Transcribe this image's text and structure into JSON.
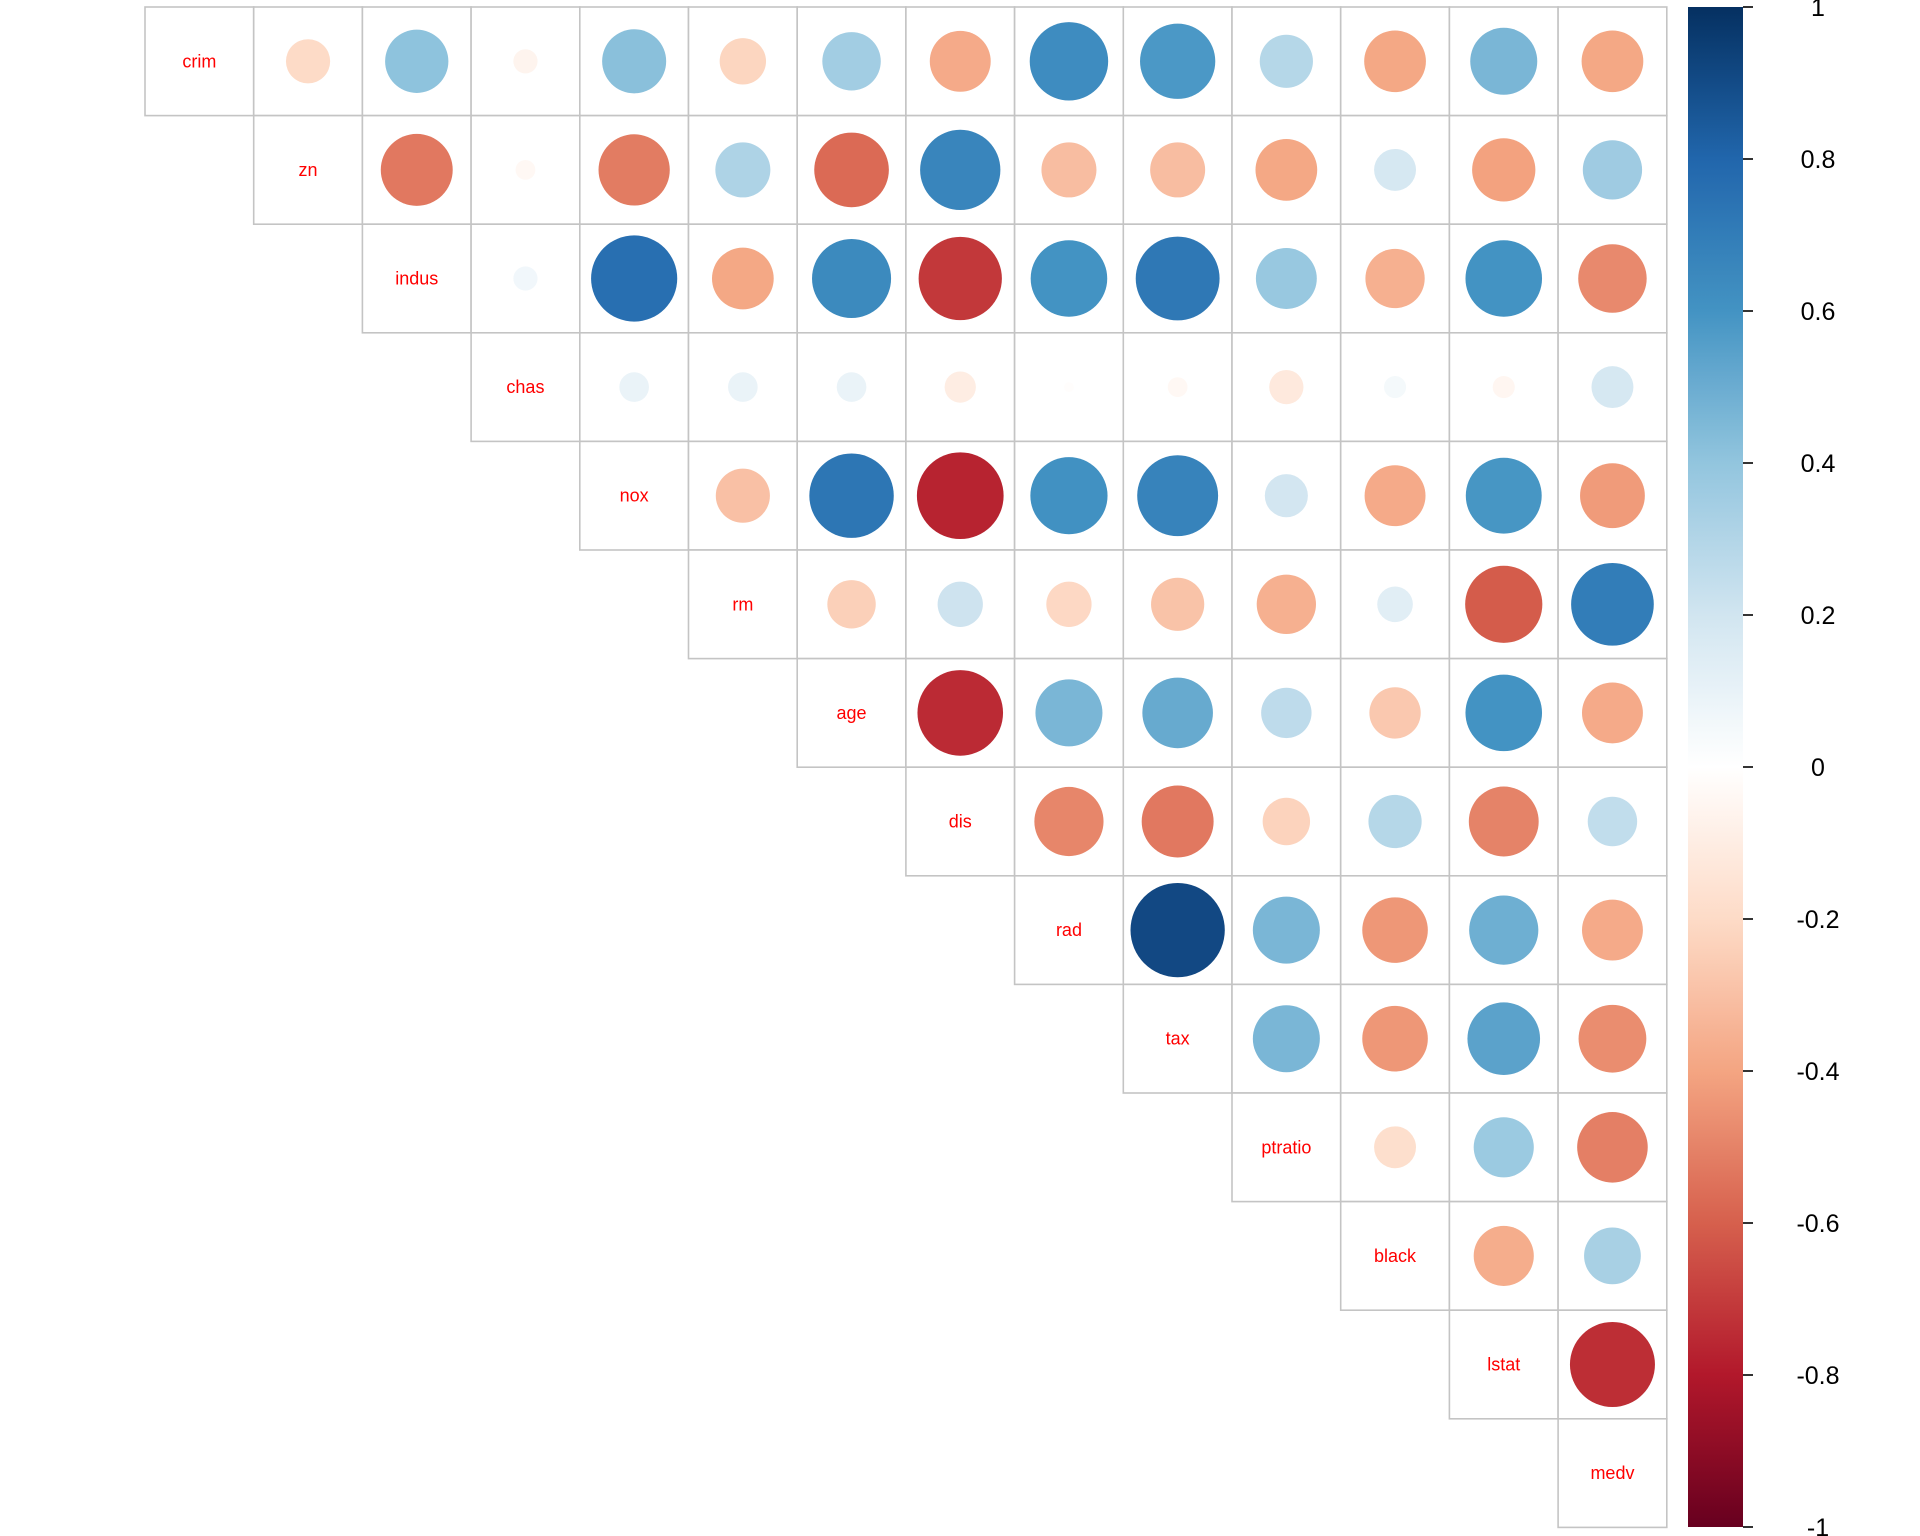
{
  "chart_data": {
    "type": "heatmap",
    "style": "correlation-matrix-upper-circles",
    "title": "",
    "variables": [
      "crim",
      "zn",
      "indus",
      "chas",
      "nox",
      "rm",
      "age",
      "dis",
      "rad",
      "tax",
      "ptratio",
      "black",
      "lstat",
      "medv"
    ],
    "matrix": [
      [
        1.0,
        -0.2,
        0.41,
        -0.06,
        0.42,
        -0.22,
        0.35,
        -0.38,
        0.63,
        0.58,
        0.29,
        -0.39,
        0.46,
        -0.39
      ],
      [
        -0.2,
        1.0,
        -0.53,
        -0.04,
        -0.52,
        0.31,
        -0.57,
        0.66,
        -0.31,
        -0.31,
        -0.39,
        0.18,
        -0.41,
        0.36
      ],
      [
        0.41,
        -0.53,
        1.0,
        0.06,
        0.76,
        -0.39,
        0.64,
        -0.71,
        0.6,
        0.72,
        0.38,
        -0.36,
        0.6,
        -0.48
      ],
      [
        -0.06,
        -0.04,
        0.06,
        1.0,
        0.09,
        0.09,
        0.09,
        -0.1,
        -0.01,
        -0.04,
        -0.12,
        0.05,
        -0.05,
        0.18
      ],
      [
        0.42,
        -0.52,
        0.76,
        0.09,
        1.0,
        -0.3,
        0.73,
        -0.77,
        0.61,
        0.67,
        0.19,
        -0.38,
        0.59,
        -0.43
      ],
      [
        -0.22,
        0.31,
        -0.39,
        0.09,
        -0.3,
        1.0,
        -0.24,
        0.21,
        -0.21,
        -0.29,
        -0.36,
        0.13,
        -0.61,
        0.7
      ],
      [
        0.35,
        -0.57,
        0.64,
        0.09,
        0.73,
        -0.24,
        1.0,
        -0.75,
        0.46,
        0.51,
        0.26,
        -0.27,
        0.6,
        -0.38
      ],
      [
        -0.38,
        0.66,
        -0.71,
        -0.1,
        -0.77,
        0.21,
        -0.75,
        1.0,
        -0.49,
        -0.53,
        -0.23,
        0.29,
        -0.5,
        0.25
      ],
      [
        0.63,
        -0.31,
        0.6,
        -0.01,
        0.61,
        -0.21,
        0.46,
        -0.49,
        1.0,
        0.91,
        0.46,
        -0.44,
        0.49,
        -0.38
      ],
      [
        0.58,
        -0.31,
        0.72,
        -0.04,
        0.67,
        -0.29,
        0.51,
        -0.53,
        0.91,
        1.0,
        0.46,
        -0.44,
        0.54,
        -0.47
      ],
      [
        0.29,
        -0.39,
        0.38,
        -0.12,
        0.19,
        -0.36,
        0.26,
        -0.23,
        0.46,
        0.46,
        1.0,
        -0.18,
        0.37,
        -0.51
      ],
      [
        -0.39,
        0.18,
        -0.36,
        0.05,
        -0.38,
        0.13,
        -0.27,
        0.29,
        -0.44,
        -0.44,
        -0.18,
        1.0,
        -0.37,
        0.33
      ],
      [
        0.46,
        -0.41,
        0.6,
        -0.05,
        0.59,
        -0.61,
        0.6,
        -0.5,
        0.49,
        0.54,
        0.37,
        -0.37,
        1.0,
        -0.74
      ],
      [
        -0.39,
        0.36,
        -0.48,
        0.18,
        -0.43,
        0.7,
        -0.38,
        0.25,
        -0.38,
        -0.47,
        -0.51,
        0.33,
        -0.74,
        1.0
      ]
    ],
    "colorbar": {
      "range": [
        -1,
        1
      ],
      "ticks": [
        "1",
        "0.8",
        "0.6",
        "0.4",
        "0.2",
        "0",
        "-0.2",
        "-0.4",
        "-0.6",
        "-0.8",
        "-1"
      ],
      "tick_values": [
        1,
        0.8,
        0.6,
        0.4,
        0.2,
        0,
        -0.2,
        -0.4,
        -0.6,
        -0.8,
        -1
      ],
      "position": "right"
    },
    "colors": {
      "label": "#ff0000",
      "grid": "#c4c4c4",
      "scale": [
        "#67001f",
        "#b2182b",
        "#d6604d",
        "#f4a582",
        "#fddbc7",
        "#ffffff",
        "#d1e5f0",
        "#92c5de",
        "#4393c3",
        "#2166ac",
        "#053061"
      ]
    }
  }
}
